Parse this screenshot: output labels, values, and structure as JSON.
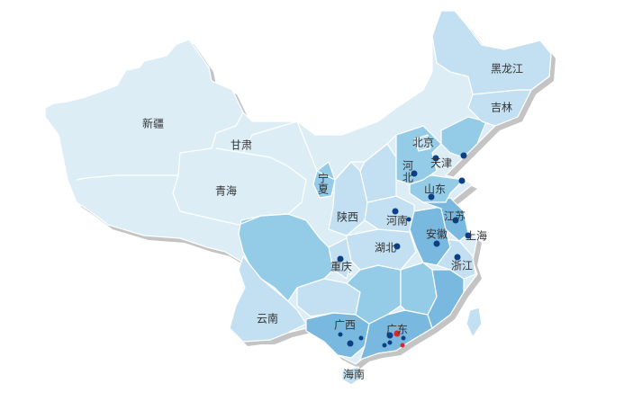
{
  "colors": {
    "level_1": "#ddedf6",
    "level_2": "#c2e0f1",
    "level_3": "#94cce8",
    "level_4": "#79b9df",
    "shadow": "#c4c4c4",
    "point": "#0b3f86",
    "point_highlight": "#d9262b"
  },
  "provinces": {
    "xinjiang": "新疆",
    "gansu": "甘肃",
    "qinghai": "青海",
    "ningxia_1": "宁",
    "ningxia_2": "夏",
    "shaanxi": "陕西",
    "heilongjiang": "黑龙江",
    "jilin": "吉林",
    "beijing": "北京",
    "tianjin": "天津",
    "hebei_1": "河",
    "hebei_2": "北",
    "shandong": "山东",
    "henan": "河南",
    "jiangsu": "江苏",
    "anhui": "安徽",
    "shanghai": "上海",
    "hubei": "湖北",
    "zhejiang": "浙江",
    "chongqing": "重庆",
    "yunnan": "云南",
    "guangxi": "广西",
    "guangdong": "广东",
    "hainan": "海南"
  }
}
